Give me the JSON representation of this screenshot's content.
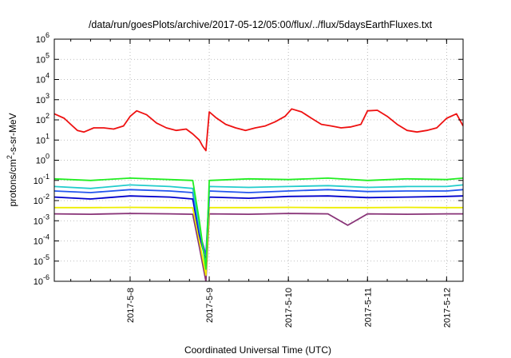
{
  "chart_data": {
    "type": "line",
    "title": "/data/run/goesPlots/archive/2017-05-12/05:00/flux/../flux/5daysEarthFluxes.txt",
    "xlabel": "Coordinated Universal Time (UTC)",
    "ylabel": {
      "base": "protons/cm",
      "sup": "2",
      "rest": "-s-sr-MeV"
    },
    "yscale": "log",
    "ylim": [
      1e-06,
      1000000.0
    ],
    "xlim": [
      "2017-05-07T01:00",
      "2017-05-12T05:00"
    ],
    "grid": true,
    "legend": "none",
    "yticks": [
      {
        "value": 1e-06,
        "base": "10",
        "exp": "-6"
      },
      {
        "value": 1e-05,
        "base": "10",
        "exp": "-5"
      },
      {
        "value": 0.0001,
        "base": "10",
        "exp": "-4"
      },
      {
        "value": 0.001,
        "base": "10",
        "exp": "-3"
      },
      {
        "value": 0.01,
        "base": "10",
        "exp": "-2"
      },
      {
        "value": 0.1,
        "base": "10",
        "exp": "-1"
      },
      {
        "value": 1,
        "base": "10",
        "exp": "0"
      },
      {
        "value": 10,
        "base": "10",
        "exp": "1"
      },
      {
        "value": 100,
        "base": "10",
        "exp": "2"
      },
      {
        "value": 1000,
        "base": "10",
        "exp": "3"
      },
      {
        "value": 10000,
        "base": "10",
        "exp": "4"
      },
      {
        "value": 100000,
        "base": "10",
        "exp": "5"
      },
      {
        "value": 1000000,
        "base": "10",
        "exp": "6"
      }
    ],
    "xticks": [
      {
        "value": "2017-05-08T00:00",
        "label": "2017-5-8"
      },
      {
        "value": "2017-05-09T00:00",
        "label": "2017-5-9"
      },
      {
        "value": "2017-05-10T00:00",
        "label": "2017-5-10"
      },
      {
        "value": "2017-05-11T00:00",
        "label": "2017-5-11"
      },
      {
        "value": "2017-05-12T00:00",
        "label": "2017-5-12"
      }
    ],
    "series": [
      {
        "color": "#ee1111",
        "x": [
          "2017-05-07T01:00",
          "2017-05-07T04:00",
          "2017-05-07T06:00",
          "2017-05-07T08:00",
          "2017-05-07T10:00",
          "2017-05-07T13:00",
          "2017-05-07T16:00",
          "2017-05-07T19:00",
          "2017-05-07T22:00",
          "2017-05-08T00:00",
          "2017-05-08T02:00",
          "2017-05-08T05:00",
          "2017-05-08T08:00",
          "2017-05-08T11:00",
          "2017-05-08T14:00",
          "2017-05-08T17:00",
          "2017-05-08T19:00",
          "2017-05-08T21:00",
          "2017-05-08T22:00",
          "2017-05-08T23:00",
          "2017-05-09T00:00",
          "2017-05-09T02:00",
          "2017-05-09T05:00",
          "2017-05-09T08:00",
          "2017-05-09T11:00",
          "2017-05-09T14:00",
          "2017-05-09T17:00",
          "2017-05-09T20:00",
          "2017-05-09T23:00",
          "2017-05-10T01:00",
          "2017-05-10T04:00",
          "2017-05-10T07:00",
          "2017-05-10T10:00",
          "2017-05-10T13:00",
          "2017-05-10T16:00",
          "2017-05-10T19:00",
          "2017-05-10T22:00",
          "2017-05-11T00:00",
          "2017-05-11T03:00",
          "2017-05-11T06:00",
          "2017-05-11T09:00",
          "2017-05-11T12:00",
          "2017-05-11T15:00",
          "2017-05-11T18:00",
          "2017-05-11T21:00",
          "2017-05-12T00:00",
          "2017-05-12T03:00",
          "2017-05-12T05:00"
        ],
        "y": [
          200,
          120,
          60,
          30,
          25,
          40,
          40,
          35,
          50,
          150,
          280,
          180,
          70,
          40,
          30,
          35,
          20,
          10,
          5,
          3,
          250,
          130,
          60,
          40,
          30,
          40,
          50,
          80,
          150,
          350,
          250,
          120,
          60,
          50,
          40,
          45,
          60,
          280,
          300,
          150,
          60,
          30,
          25,
          30,
          40,
          120,
          200,
          50
        ]
      },
      {
        "color": "#22ee22",
        "x": [
          "2017-05-07T01:00",
          "2017-05-07T12:00",
          "2017-05-08T00:00",
          "2017-05-08T12:00",
          "2017-05-08T19:00",
          "2017-05-08T21:00",
          "2017-05-08T23:00",
          "2017-05-09T00:00",
          "2017-05-09T12:00",
          "2017-05-10T00:00",
          "2017-05-10T12:00",
          "2017-05-11T00:00",
          "2017-05-11T12:00",
          "2017-05-12T00:00",
          "2017-05-12T05:00"
        ],
        "y": [
          0.12,
          0.1,
          0.13,
          0.11,
          0.1,
          0.001,
          4e-06,
          0.1,
          0.12,
          0.11,
          0.13,
          0.1,
          0.12,
          0.11,
          0.13
        ]
      },
      {
        "color": "#22cccc",
        "x": [
          "2017-05-07T01:00",
          "2017-05-07T12:00",
          "2017-05-08T00:00",
          "2017-05-08T12:00",
          "2017-05-08T19:00",
          "2017-05-08T21:00",
          "2017-05-08T23:00",
          "2017-05-09T00:00",
          "2017-05-09T12:00",
          "2017-05-10T00:00",
          "2017-05-10T12:00",
          "2017-05-11T00:00",
          "2017-05-11T12:00",
          "2017-05-12T00:00",
          "2017-05-12T05:00"
        ],
        "y": [
          0.05,
          0.04,
          0.06,
          0.05,
          0.04,
          0.0005,
          6e-06,
          0.05,
          0.045,
          0.05,
          0.055,
          0.045,
          0.05,
          0.05,
          0.06
        ]
      },
      {
        "color": "#2255ee",
        "x": [
          "2017-05-07T01:00",
          "2017-05-07T12:00",
          "2017-05-08T00:00",
          "2017-05-08T12:00",
          "2017-05-08T19:00",
          "2017-05-08T21:00",
          "2017-05-08T23:00",
          "2017-05-09T00:00",
          "2017-05-09T12:00",
          "2017-05-10T00:00",
          "2017-05-10T12:00",
          "2017-05-11T00:00",
          "2017-05-11T12:00",
          "2017-05-12T00:00",
          "2017-05-12T05:00"
        ],
        "y": [
          0.03,
          0.025,
          0.035,
          0.03,
          0.025,
          0.0003,
          2e-05,
          0.03,
          0.025,
          0.03,
          0.035,
          0.028,
          0.03,
          0.03,
          0.035
        ]
      },
      {
        "color": "#0000cc",
        "x": [
          "2017-05-07T01:00",
          "2017-05-07T12:00",
          "2017-05-08T00:00",
          "2017-05-08T12:00",
          "2017-05-08T19:00",
          "2017-05-08T21:00",
          "2017-05-08T23:00",
          "2017-05-09T00:00",
          "2017-05-09T12:00",
          "2017-05-10T00:00",
          "2017-05-10T12:00",
          "2017-05-11T00:00",
          "2017-05-11T12:00",
          "2017-05-12T00:00",
          "2017-05-12T05:00"
        ],
        "y": [
          0.015,
          0.012,
          0.017,
          0.015,
          0.012,
          0.0002,
          1e-05,
          0.015,
          0.013,
          0.016,
          0.017,
          0.014,
          0.015,
          0.016,
          0.017
        ]
      },
      {
        "color": "#eeee00",
        "x": [
          "2017-05-07T01:00",
          "2017-05-07T12:00",
          "2017-05-08T00:00",
          "2017-05-08T12:00",
          "2017-05-08T19:00",
          "2017-05-08T21:00",
          "2017-05-08T23:00",
          "2017-05-09T00:00",
          "2017-05-09T12:00",
          "2017-05-10T00:00",
          "2017-05-10T12:00",
          "2017-05-11T00:00",
          "2017-05-11T12:00",
          "2017-05-12T00:00",
          "2017-05-12T05:00"
        ],
        "y": [
          0.0045,
          0.0045,
          0.0046,
          0.0045,
          0.0044,
          0.0001,
          2e-06,
          0.0045,
          0.0045,
          0.0046,
          0.0045,
          0.0045,
          0.0046,
          0.0045,
          0.0045
        ]
      },
      {
        "color": "#883377",
        "x": [
          "2017-05-07T01:00",
          "2017-05-07T12:00",
          "2017-05-08T00:00",
          "2017-05-08T12:00",
          "2017-05-08T19:00",
          "2017-05-08T21:00",
          "2017-05-08T23:00",
          "2017-05-09T00:00",
          "2017-05-09T12:00",
          "2017-05-10T00:00",
          "2017-05-10T12:00",
          "2017-05-10T18:00",
          "2017-05-11T00:00",
          "2017-05-11T12:00",
          "2017-05-12T00:00",
          "2017-05-12T05:00"
        ],
        "y": [
          0.0022,
          0.0021,
          0.0023,
          0.0022,
          0.0021,
          5e-05,
          1e-06,
          0.0022,
          0.0021,
          0.0023,
          0.0022,
          0.0006,
          0.0022,
          0.0021,
          0.0022,
          0.0022
        ]
      }
    ]
  }
}
